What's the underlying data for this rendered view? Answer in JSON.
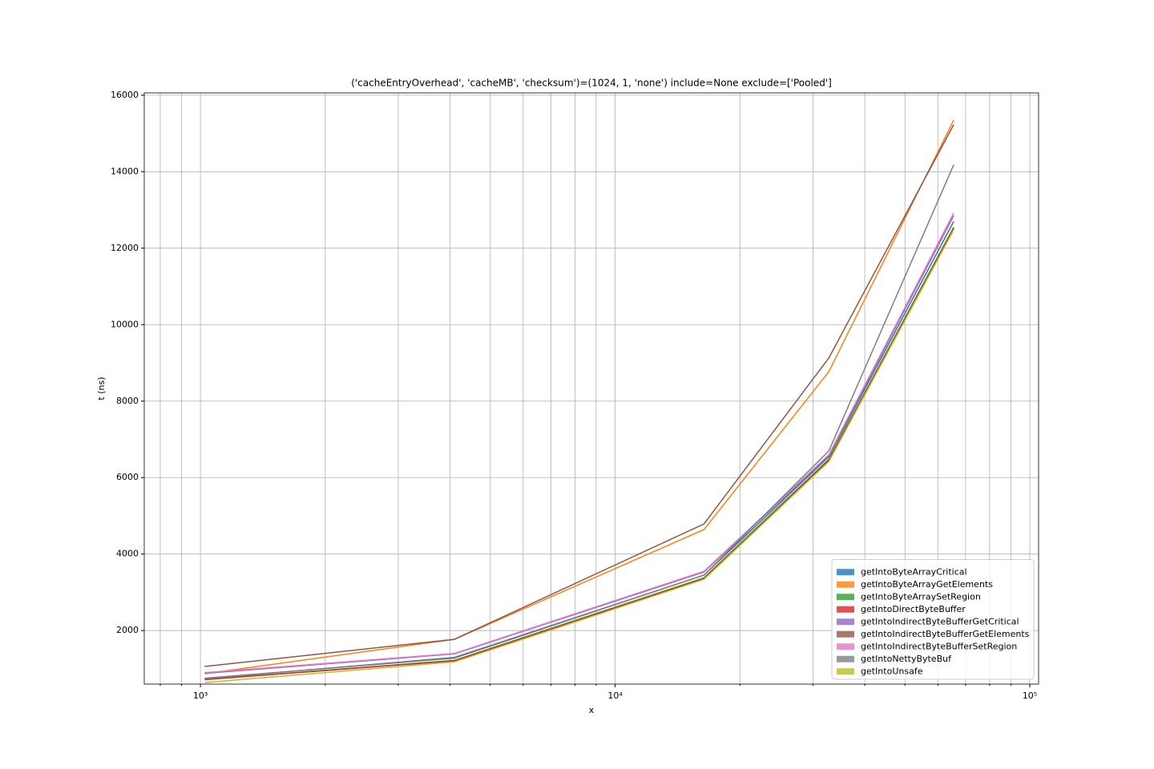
{
  "chart_data": {
    "type": "line",
    "title": "('cacheEntryOverhead', 'cacheMB', 'checksum')=(1024, 1, 'none') include=None exclude=['Pooled']",
    "x_label": "x",
    "y_label": "t (ns)",
    "x": [
      1024,
      4096,
      16384,
      32768,
      65536
    ],
    "xscale": "log",
    "xlim": [
      732,
      105000
    ],
    "ylim": [
      600,
      16060
    ],
    "xticks": [
      {
        "value": 1000,
        "label": "10³"
      },
      {
        "value": 10000,
        "label": "10⁴"
      },
      {
        "value": 100000,
        "label": "10⁵"
      }
    ],
    "xminorticks": [
      800,
      900,
      2000,
      3000,
      4000,
      5000,
      6000,
      7000,
      8000,
      9000,
      20000,
      30000,
      40000,
      50000,
      60000,
      70000,
      80000,
      90000
    ],
    "yticks": [
      2000,
      4000,
      6000,
      8000,
      10000,
      12000,
      14000,
      16000
    ],
    "grid": true,
    "legend": "lower right",
    "series": [
      {
        "name": "getIntoByteArrayCritical",
        "color": "#1f77b4",
        "values": [
          750,
          1280,
          3450,
          6550,
          12700
        ]
      },
      {
        "name": "getIntoByteArrayGetElements",
        "color": "#ff7f0e",
        "values": [
          870,
          1770,
          4640,
          8770,
          15350
        ]
      },
      {
        "name": "getIntoByteArraySetRegion",
        "color": "#2ca02c",
        "values": [
          720,
          1220,
          3380,
          6480,
          12550
        ]
      },
      {
        "name": "getIntoDirectByteBuffer",
        "color": "#d62728",
        "values": [
          715,
          1210,
          3360,
          6450,
          12520
        ]
      },
      {
        "name": "getIntoIndirectByteBufferGetCritical",
        "color": "#9467bd",
        "values": [
          880,
          1390,
          3530,
          6580,
          12850
        ]
      },
      {
        "name": "getIntoIndirectByteBufferGetElements",
        "color": "#8c564b",
        "values": [
          1060,
          1770,
          4790,
          9130,
          15230
        ]
      },
      {
        "name": "getIntoIndirectByteBufferSetRegion",
        "color": "#e377c2",
        "values": [
          900,
          1400,
          3550,
          6600,
          12920
        ]
      },
      {
        "name": "getIntoNettyByteBuf",
        "color": "#7f7f7f",
        "values": [
          740,
          1300,
          3450,
          6700,
          14180
        ]
      },
      {
        "name": "getIntoUnsafe",
        "color": "#bcbd22",
        "values": [
          640,
          1180,
          3340,
          6420,
          12480
        ]
      }
    ]
  }
}
